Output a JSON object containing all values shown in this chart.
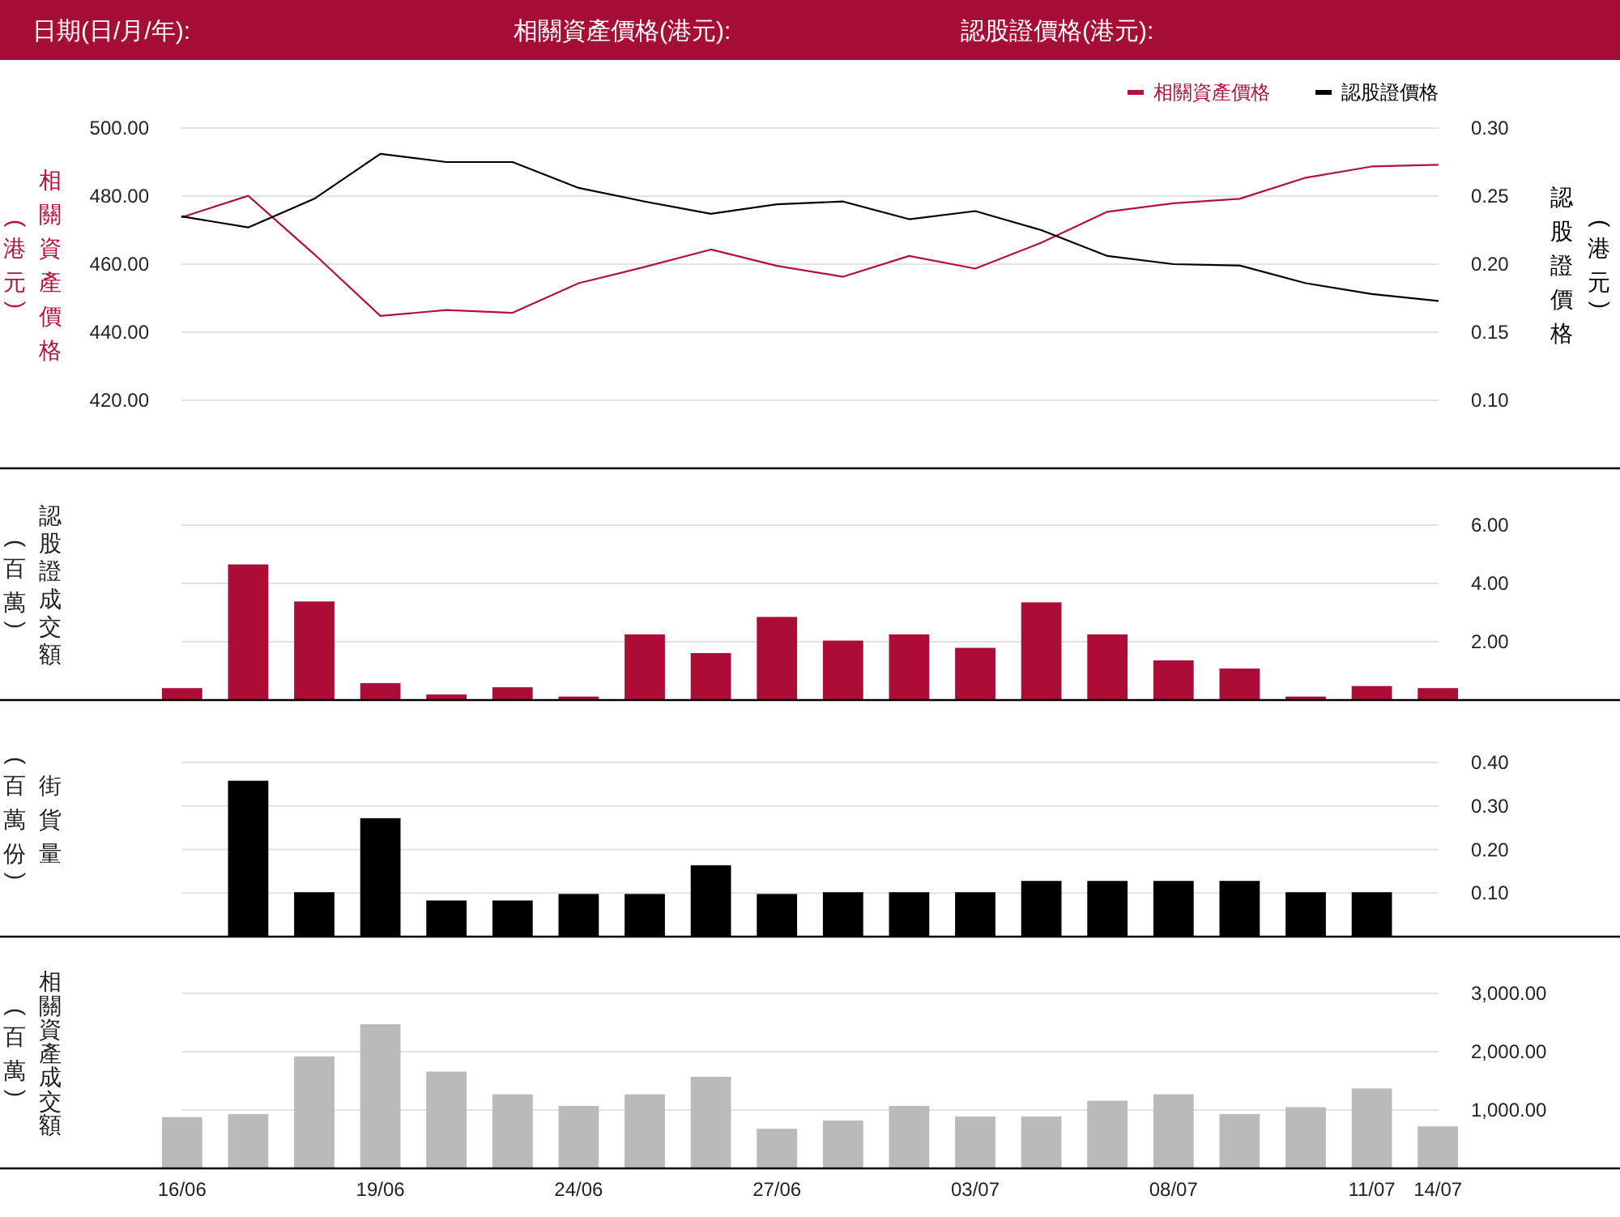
{
  "chart_data": [
    {
      "type": "line",
      "annotations": [
        "日期(日/月/年):",
        "相關資產價格(港元):",
        "認股證價格(港元):"
      ],
      "categories": [
        null,
        null,
        null,
        null,
        null,
        null,
        null,
        null,
        null,
        null,
        null,
        null,
        null,
        null,
        null,
        null,
        null,
        null,
        null,
        null
      ],
      "series": [
        {
          "name": "相關資產價格",
          "color": "#b4103e",
          "values": [
            473.8,
            480.1,
            462.9,
            444.8,
            446.5,
            445.7,
            454.4,
            459.2,
            464.3,
            459.5,
            456.3,
            462.4,
            458.7,
            466.3,
            475.4,
            477.9,
            479.2,
            485.4,
            488.7,
            489.2
          ]
        },
        {
          "name": "認股證價格",
          "color": "#000000",
          "axis": "y2",
          "values": [
            0.235,
            0.227,
            0.248,
            0.281,
            0.275,
            0.275,
            0.256,
            0.246,
            0.237,
            0.244,
            0.246,
            0.233,
            0.239,
            0.225,
            0.206,
            0.2,
            0.199,
            0.186,
            0.178,
            0.173
          ]
        }
      ],
      "ylim": [
        400,
        500
      ],
      "yticks": [
        {
          "value": 420,
          "label": "420.00"
        },
        {
          "value": 440,
          "label": "440.00"
        },
        {
          "value": 460,
          "label": "460.00"
        },
        {
          "value": 480,
          "label": "480.00"
        },
        {
          "value": 500,
          "label": "500.00"
        }
      ],
      "y2lim": [
        0.05,
        0.3
      ],
      "y2ticks": [
        {
          "value": 0.1,
          "label": "0.10"
        },
        {
          "value": 0.15,
          "label": "0.15"
        },
        {
          "value": 0.2,
          "label": "0.20"
        },
        {
          "value": 0.25,
          "label": "0.25"
        },
        {
          "value": 0.3,
          "label": "0.30"
        }
      ],
      "ylabel": "相關資產價格(港元)",
      "y2label": "認股證價格(港元)",
      "grid": "y",
      "legend": "top right"
    },
    {
      "type": "bar",
      "categories": [
        null,
        null,
        null,
        null,
        null,
        null,
        null,
        null,
        null,
        null,
        null,
        null,
        null,
        null,
        null,
        null,
        null,
        null,
        null,
        null
      ],
      "values": [
        0.41,
        4.65,
        3.38,
        0.58,
        0.19,
        0.44,
        0.12,
        2.25,
        1.61,
        2.85,
        2.04,
        2.25,
        1.79,
        3.35,
        2.25,
        1.36,
        1.08,
        0.12,
        0.48,
        0.41
      ],
      "color": "#ab0d36",
      "ylim": [
        0,
        6
      ],
      "yticks": [
        {
          "value": 2,
          "label": "2.00"
        },
        {
          "value": 4,
          "label": "4.00"
        },
        {
          "value": 6,
          "label": "6.00"
        }
      ],
      "ylabel": "認股證成交額(百萬)",
      "grid": "y"
    },
    {
      "type": "bar",
      "categories": [
        null,
        null,
        null,
        null,
        null,
        null,
        null,
        null,
        null,
        null,
        null,
        null,
        null,
        null,
        null,
        null,
        null,
        null,
        null,
        null
      ],
      "values": [
        null,
        0.358,
        0.102,
        0.272,
        0.083,
        0.083,
        0.098,
        0.098,
        0.164,
        0.098,
        0.102,
        0.102,
        0.102,
        0.128,
        0.128,
        0.128,
        0.128,
        0.102,
        0.102,
        null
      ],
      "color": "#000000",
      "ylim": [
        0,
        0.4
      ],
      "yticks": [
        {
          "value": 0.1,
          "label": "0.10"
        },
        {
          "value": 0.2,
          "label": "0.20"
        },
        {
          "value": 0.3,
          "label": "0.30"
        },
        {
          "value": 0.4,
          "label": "0.40"
        }
      ],
      "ylabel": "街貨量(百萬份)",
      "grid": "y"
    },
    {
      "type": "bar",
      "categories": [
        "16/06",
        null,
        null,
        "19/06",
        null,
        null,
        "24/06",
        null,
        null,
        "27/06",
        null,
        null,
        "03/07",
        null,
        null,
        "08/07",
        null,
        null,
        "11/07",
        "14/07"
      ],
      "values": [
        880,
        930,
        1920,
        2470,
        1660,
        1270,
        1070,
        1270,
        1570,
        680,
        820,
        1070,
        890,
        890,
        1160,
        1270,
        930,
        1050,
        1370,
        720
      ],
      "color": "#bababa",
      "ylim": [
        0,
        3000
      ],
      "yticks": [
        {
          "value": 1000,
          "label": "1,000.00"
        },
        {
          "value": 2000,
          "label": "2,000.00"
        },
        {
          "value": 3000,
          "label": "3,000.00"
        }
      ],
      "ylabel": "相關資產成交額(百萬)",
      "grid": "y"
    }
  ]
}
